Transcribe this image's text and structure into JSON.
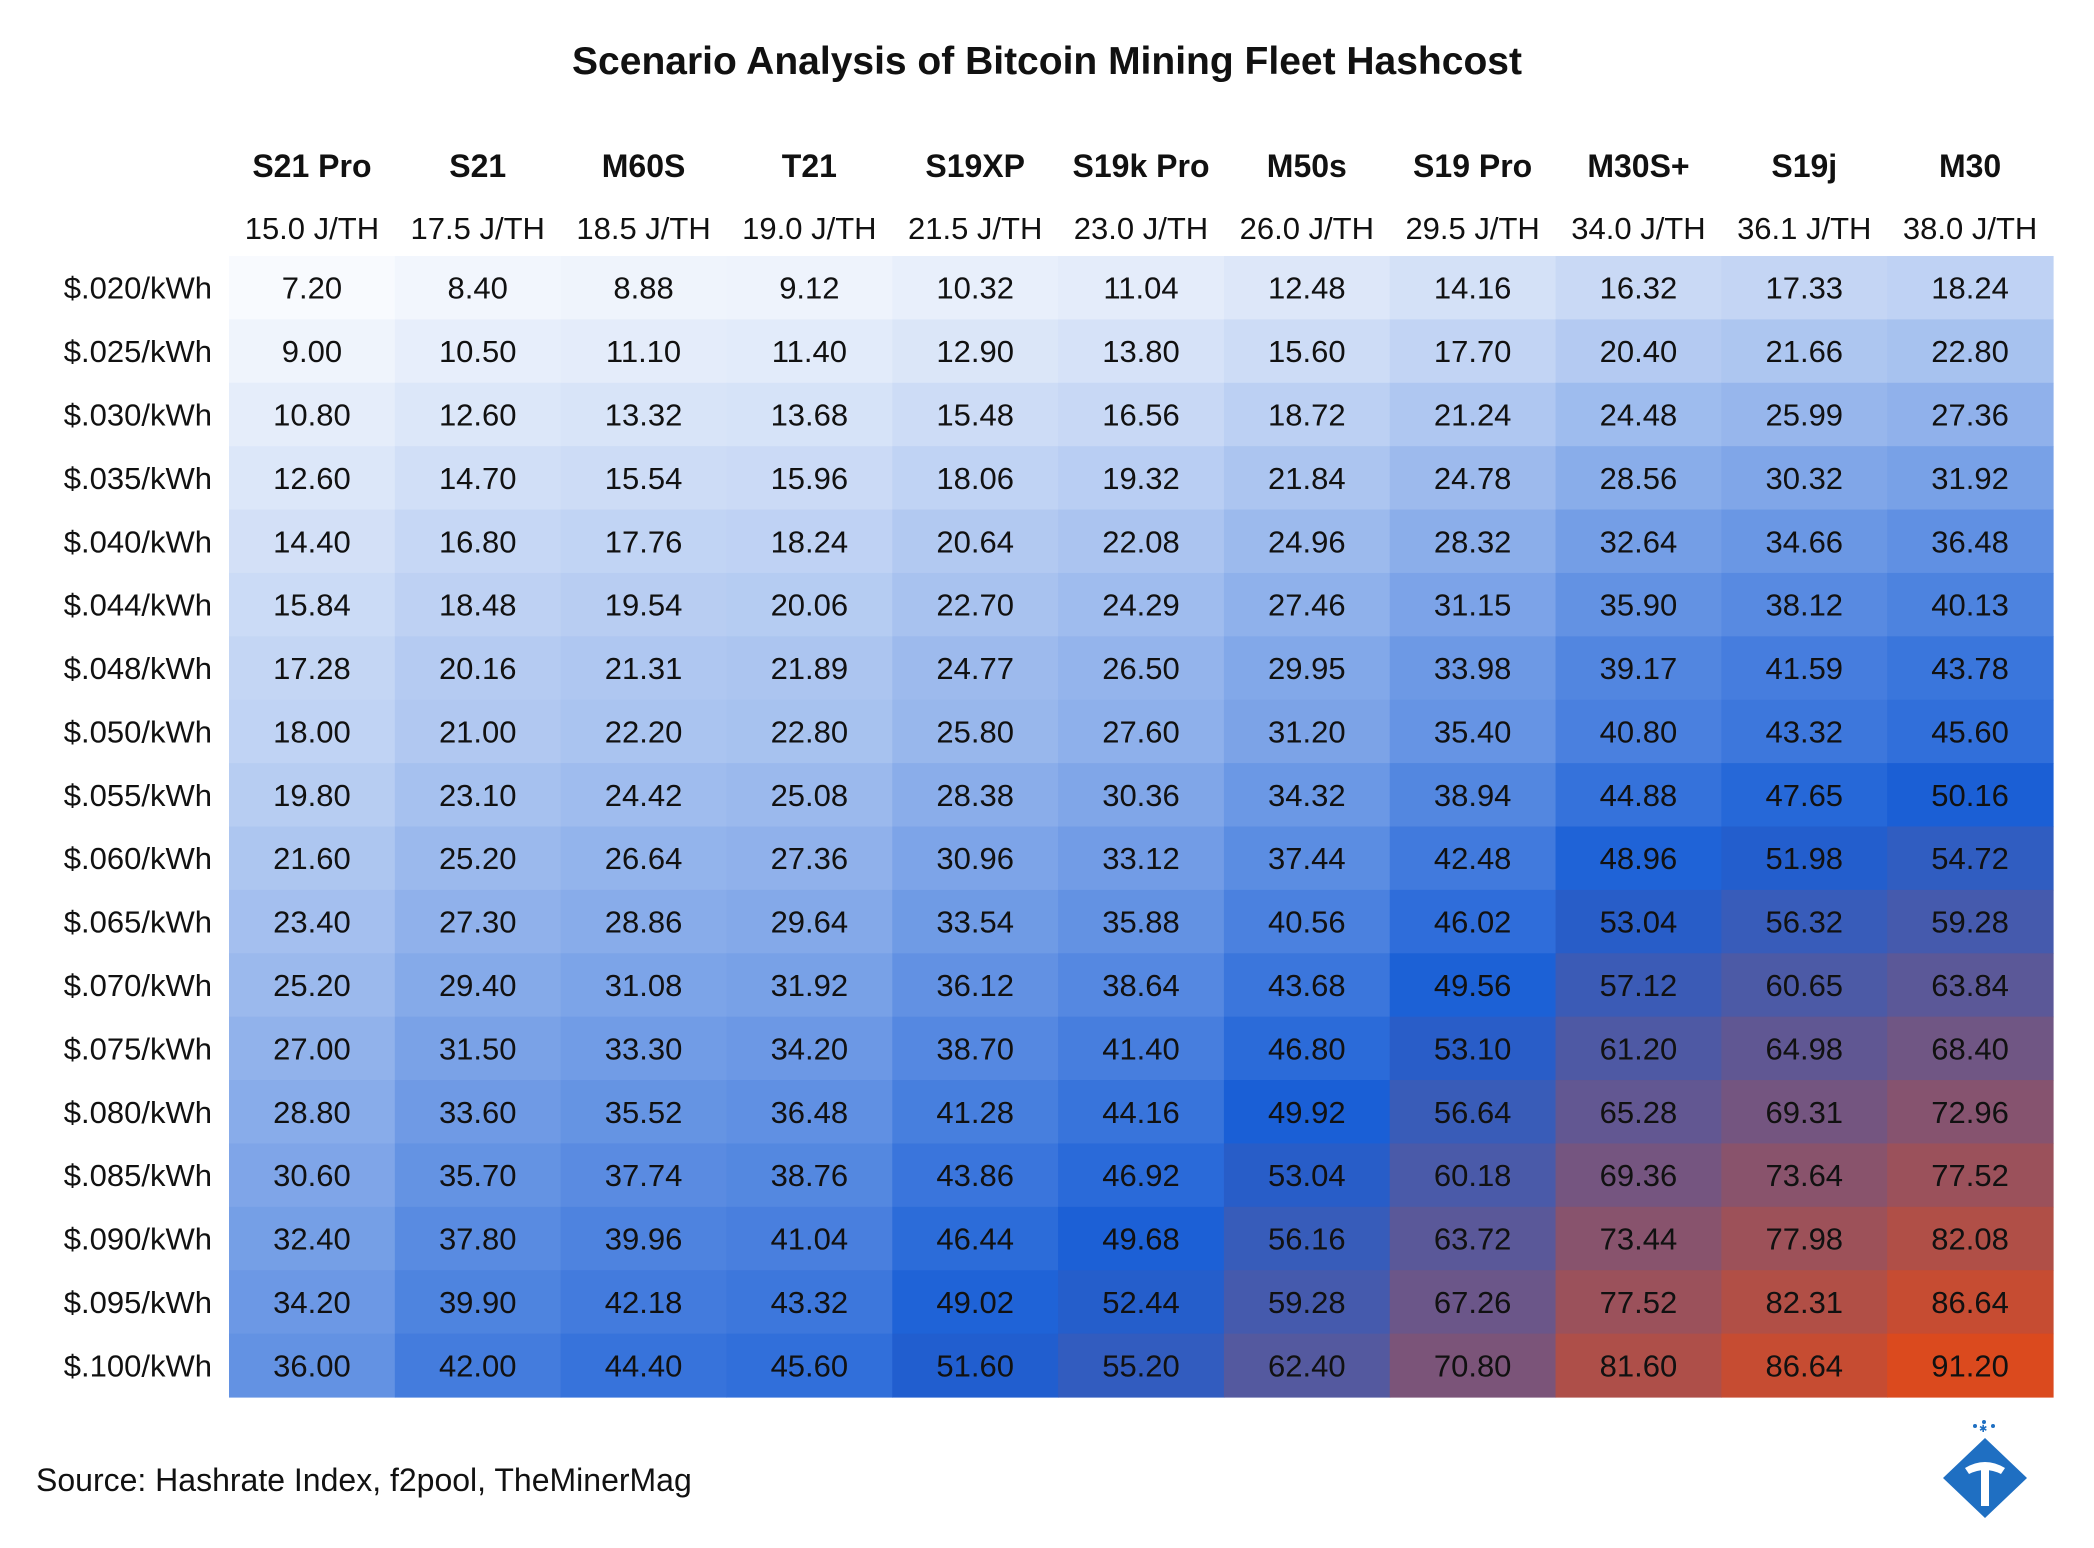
{
  "chart_data": {
    "type": "heatmap",
    "title": "Scenario Analysis of Bitcoin Mining Fleet Hashcost",
    "columns": [
      "S21 Pro",
      "S21",
      "M60S",
      "T21",
      "S19XP",
      "S19k Pro",
      "M50s",
      "S19 Pro",
      "M30S+",
      "S19j",
      "M30"
    ],
    "column_efficiency": [
      "15.0 J/TH",
      "17.5 J/TH",
      "18.5 J/TH",
      "19.0 J/TH",
      "21.5 J/TH",
      "23.0 J/TH",
      "26.0 J/TH",
      "29.5 J/TH",
      "34.0 J/TH",
      "36.1 J/TH",
      "38.0 J/TH"
    ],
    "rows": [
      "$.020/kWh",
      "$.025/kWh",
      "$.030/kWh",
      "$.035/kWh",
      "$.040/kWh",
      "$.044/kWh",
      "$.048/kWh",
      "$.050/kWh",
      "$.055/kWh",
      "$.060/kWh",
      "$.065/kWh",
      "$.070/kWh",
      "$.075/kWh",
      "$.080/kWh",
      "$.085/kWh",
      "$.090/kWh",
      "$.095/kWh",
      "$.100/kWh"
    ],
    "values": [
      [
        "7.20",
        "8.40",
        "8.88",
        "9.12",
        "10.32",
        "11.04",
        "12.48",
        "14.16",
        "16.32",
        "17.33",
        "18.24"
      ],
      [
        "9.00",
        "10.50",
        "11.10",
        "11.40",
        "12.90",
        "13.80",
        "15.60",
        "17.70",
        "20.40",
        "21.66",
        "22.80"
      ],
      [
        "10.80",
        "12.60",
        "13.32",
        "13.68",
        "15.48",
        "16.56",
        "18.72",
        "21.24",
        "24.48",
        "25.99",
        "27.36"
      ],
      [
        "12.60",
        "14.70",
        "15.54",
        "15.96",
        "18.06",
        "19.32",
        "21.84",
        "24.78",
        "28.56",
        "30.32",
        "31.92"
      ],
      [
        "14.40",
        "16.80",
        "17.76",
        "18.24",
        "20.64",
        "22.08",
        "24.96",
        "28.32",
        "32.64",
        "34.66",
        "36.48"
      ],
      [
        "15.84",
        "18.48",
        "19.54",
        "20.06",
        "22.70",
        "24.29",
        "27.46",
        "31.15",
        "35.90",
        "38.12",
        "40.13"
      ],
      [
        "17.28",
        "20.16",
        "21.31",
        "21.89",
        "24.77",
        "26.50",
        "29.95",
        "33.98",
        "39.17",
        "41.59",
        "43.78"
      ],
      [
        "18.00",
        "21.00",
        "22.20",
        "22.80",
        "25.80",
        "27.60",
        "31.20",
        "35.40",
        "40.80",
        "43.32",
        "45.60"
      ],
      [
        "19.80",
        "23.10",
        "24.42",
        "25.08",
        "28.38",
        "30.36",
        "34.32",
        "38.94",
        "44.88",
        "47.65",
        "50.16"
      ],
      [
        "21.60",
        "25.20",
        "26.64",
        "27.36",
        "30.96",
        "33.12",
        "37.44",
        "42.48",
        "48.96",
        "51.98",
        "54.72"
      ],
      [
        "23.40",
        "27.30",
        "28.86",
        "29.64",
        "33.54",
        "35.88",
        "40.56",
        "46.02",
        "53.04",
        "56.32",
        "59.28"
      ],
      [
        "25.20",
        "29.40",
        "31.08",
        "31.92",
        "36.12",
        "38.64",
        "43.68",
        "49.56",
        "57.12",
        "60.65",
        "63.84"
      ],
      [
        "27.00",
        "31.50",
        "33.30",
        "34.20",
        "38.70",
        "41.40",
        "46.80",
        "53.10",
        "61.20",
        "64.98",
        "68.40"
      ],
      [
        "28.80",
        "33.60",
        "35.52",
        "36.48",
        "41.28",
        "44.16",
        "49.92",
        "56.64",
        "65.28",
        "69.31",
        "72.96"
      ],
      [
        "30.60",
        "35.70",
        "37.74",
        "38.76",
        "43.86",
        "46.92",
        "53.04",
        "60.18",
        "69.36",
        "73.64",
        "77.52"
      ],
      [
        "32.40",
        "37.80",
        "39.96",
        "41.04",
        "46.44",
        "49.68",
        "56.16",
        "63.72",
        "73.44",
        "77.98",
        "82.08"
      ],
      [
        "34.20",
        "39.90",
        "42.18",
        "43.32",
        "49.02",
        "52.44",
        "59.28",
        "67.26",
        "77.52",
        "82.31",
        "86.64"
      ],
      [
        "36.00",
        "42.00",
        "44.40",
        "45.60",
        "51.60",
        "55.20",
        "62.40",
        "70.80",
        "81.60",
        "86.64",
        "91.20"
      ]
    ],
    "color_scale": {
      "low": "#ffffff",
      "mid": "#1a5fd6",
      "high": "#db4a1e",
      "min": 7.2,
      "mid_value": 50,
      "max": 91.2
    },
    "legend": "none"
  },
  "source": "Source: Hashrate Index, f2pool, TheMinerMag",
  "logo": {
    "icon": "hashrate-index-logo-icon",
    "color": "#1f6fc2"
  }
}
